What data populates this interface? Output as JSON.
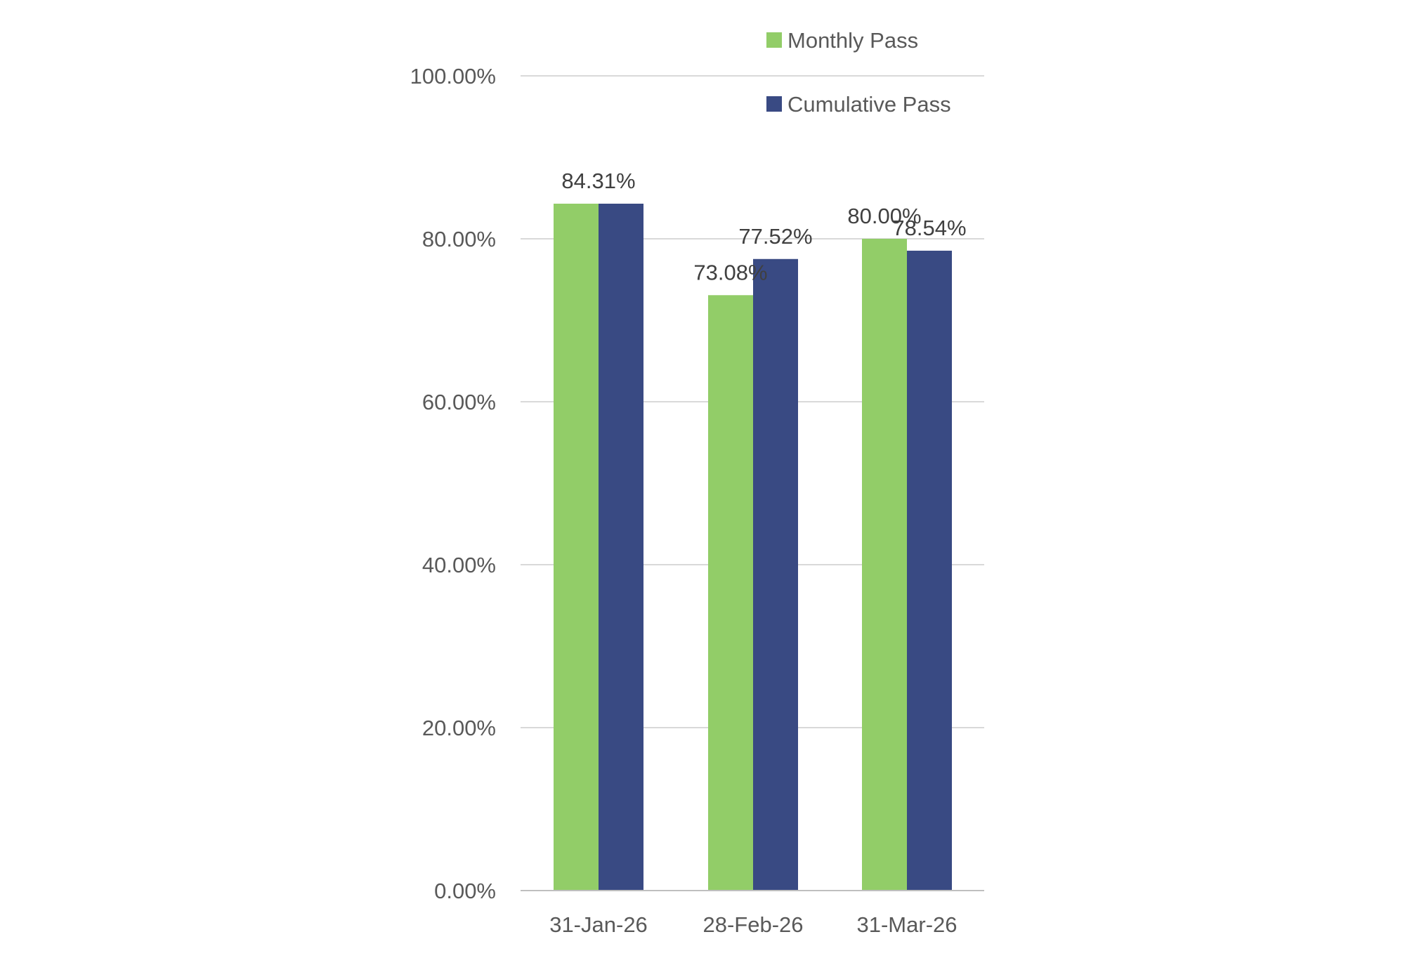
{
  "chart_data": {
    "type": "bar",
    "categories": [
      "31-Jan-26",
      "28-Feb-26",
      "31-Mar-26"
    ],
    "series": [
      {
        "name": "Monthly Pass",
        "values": [
          84.31,
          73.08,
          80.0
        ],
        "color": "#92CD68"
      },
      {
        "name": "Cumulative Pass",
        "values": [
          84.31,
          77.52,
          78.54
        ],
        "color": "#394A83"
      }
    ],
    "data_labels": [
      {
        "text": "84.31%",
        "category": 0
      },
      {
        "text": "73.08%",
        "category": 1,
        "series": 0
      },
      {
        "text": "77.52%",
        "category": 1,
        "series": 1
      },
      {
        "text": "80.00%",
        "category": 2,
        "series": 0
      },
      {
        "text": "78.54%",
        "category": 2,
        "series": 1
      }
    ],
    "ylim": [
      0,
      100
    ],
    "yticks": [
      {
        "value": 0,
        "label": "0.00%"
      },
      {
        "value": 20,
        "label": "20.00%"
      },
      {
        "value": 40,
        "label": "40.00%"
      },
      {
        "value": 60,
        "label": "60.00%"
      },
      {
        "value": 80,
        "label": "80.00%"
      },
      {
        "value": 100,
        "label": "100.00%"
      }
    ],
    "grid": true,
    "legend_position": "top-right",
    "title": "",
    "xlabel": "",
    "ylabel": ""
  }
}
